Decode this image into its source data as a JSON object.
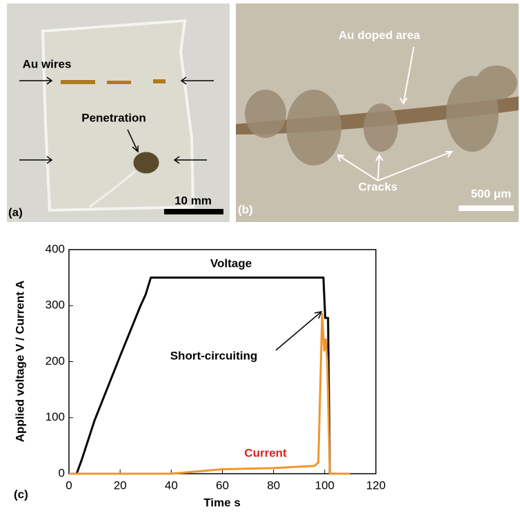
{
  "panels": {
    "a": {
      "label": "(a)",
      "wires": "Au wires",
      "penetration": "Penetration",
      "scale": "10 mm"
    },
    "b": {
      "label": "(b)",
      "doped": "Au doped area",
      "cracks": "Cracks",
      "scale": "500 μm"
    }
  },
  "chart_data": {
    "type": "line",
    "panel_label": "(c)",
    "x_label": "Time  s",
    "y_label": "Applied voltage  V  /  Current  A",
    "xlim": [
      0,
      120
    ],
    "xticks": [
      0,
      20,
      40,
      60,
      80,
      100,
      120
    ],
    "ylim": [
      0,
      400
    ],
    "yticks": [
      0,
      100,
      200,
      300,
      400
    ],
    "series": [
      {
        "name": "Voltage",
        "color": "#000000",
        "x": [
          0,
          3,
          5,
          10,
          20,
          28,
          30,
          32,
          99.5,
          100.2,
          101.3,
          102,
          110
        ],
        "values": [
          0,
          0,
          25,
          95,
          210,
          300,
          320,
          350,
          350,
          278,
          278,
          0,
          0
        ]
      },
      {
        "name": "Current",
        "color": "#f0962a",
        "x": [
          0,
          40,
          60,
          80,
          96,
          97.5,
          99,
          99.8,
          100.4,
          101,
          102,
          110
        ],
        "values": [
          0,
          0,
          8,
          10,
          14,
          20,
          285,
          220,
          240,
          200,
          0,
          0
        ]
      }
    ],
    "annotation": "Short-circuiting"
  }
}
